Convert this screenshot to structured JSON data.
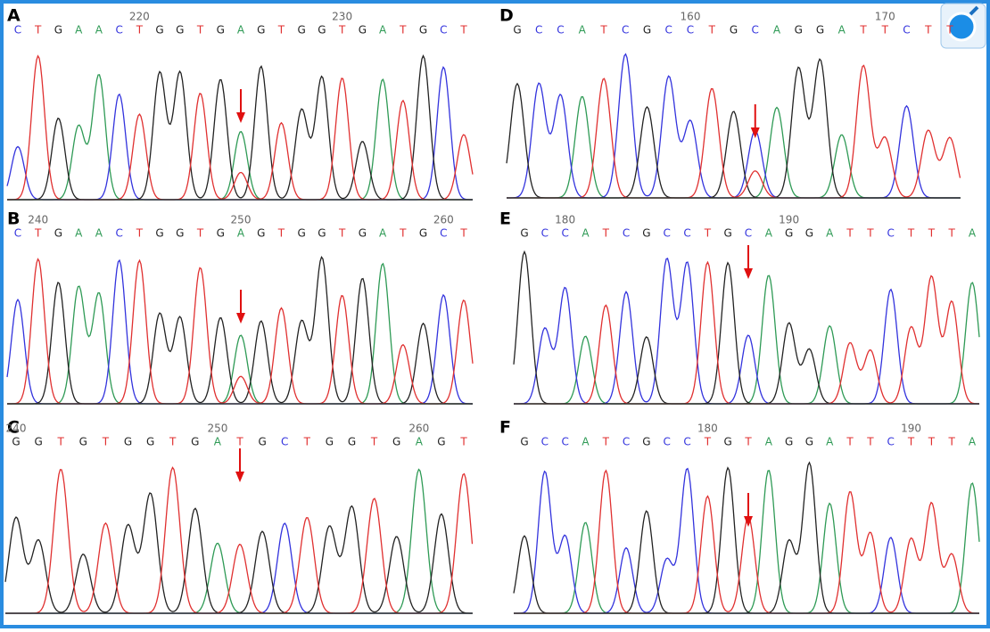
{
  "panels": [
    {
      "label": "A",
      "positions": [
        220,
        230
      ],
      "bases": [
        "C",
        "T",
        "G",
        "A",
        "A",
        "C",
        "T",
        "G",
        "G",
        "T",
        "G",
        "A",
        "G",
        "T",
        "G",
        "G",
        "T",
        "G",
        "A",
        "T",
        "G",
        "C",
        "T"
      ]
    },
    {
      "label": "B",
      "positions": [
        240,
        250,
        260
      ],
      "bases": [
        "C",
        "T",
        "G",
        "A",
        "A",
        "C",
        "T",
        "G",
        "G",
        "T",
        "G",
        "A",
        "G",
        "T",
        "G",
        "G",
        "T",
        "G",
        "A",
        "T",
        "G",
        "C",
        "T"
      ]
    },
    {
      "label": "C",
      "positions": [
        240,
        250,
        260
      ],
      "bases": [
        "G",
        "G",
        "T",
        "G",
        "T",
        "G",
        "G",
        "T",
        "G",
        "A",
        "T",
        "G",
        "C",
        "T",
        "G",
        "G",
        "T",
        "G",
        "A",
        "G",
        "T"
      ]
    },
    {
      "label": "D",
      "positions": [
        160,
        170
      ],
      "bases": [
        "G",
        "C",
        "C",
        "A",
        "T",
        "C",
        "G",
        "C",
        "C",
        "T",
        "G",
        "C",
        "A",
        "G",
        "G",
        "A",
        "T",
        "T",
        "C",
        "T",
        "T"
      ]
    },
    {
      "label": "E",
      "positions": [
        180,
        190
      ],
      "bases": [
        "G",
        "C",
        "C",
        "A",
        "T",
        "C",
        "G",
        "C",
        "C",
        "T",
        "G",
        "C",
        "A",
        "G",
        "G",
        "A",
        "T",
        "T",
        "C",
        "T",
        "T",
        "T",
        "A"
      ]
    },
    {
      "label": "F",
      "positions": [
        180,
        190
      ],
      "bases": [
        "G",
        "C",
        "C",
        "A",
        "T",
        "C",
        "G",
        "C",
        "C",
        "T",
        "G",
        "T",
        "A",
        "G",
        "G",
        "A",
        "T",
        "T",
        "C",
        "T",
        "T",
        "T",
        "A"
      ]
    }
  ]
}
